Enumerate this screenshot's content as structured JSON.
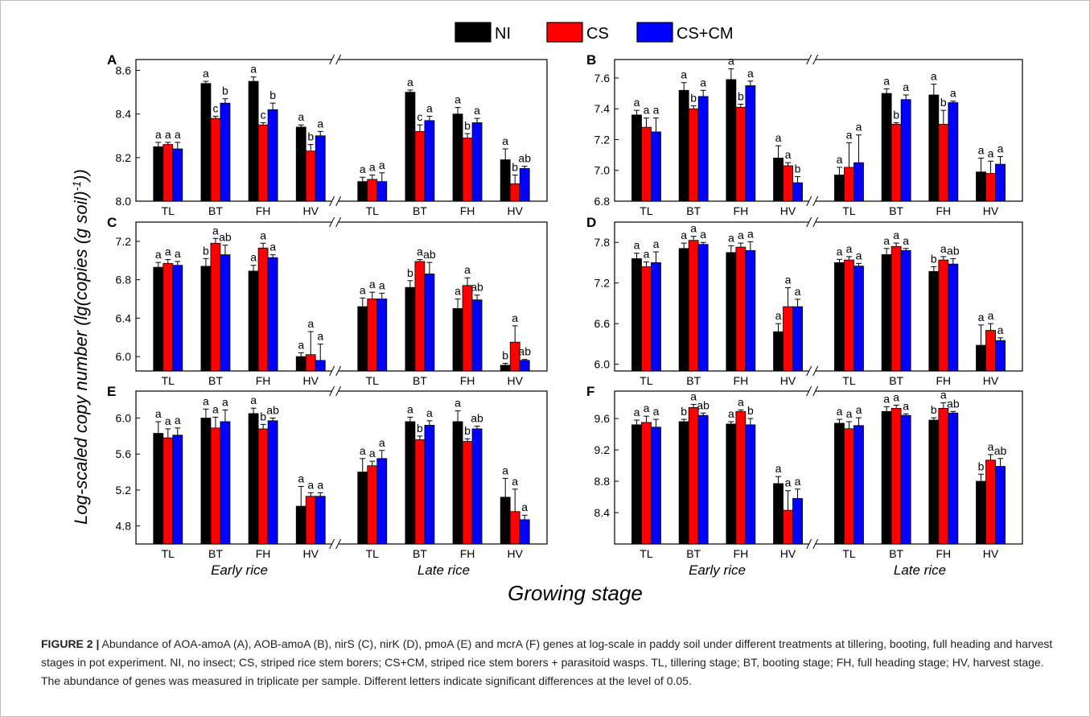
{
  "figure": {
    "legend": [
      {
        "label": "NI",
        "color": "#000000"
      },
      {
        "label": "CS",
        "color": "#ff0000"
      },
      {
        "label": "CS+CM",
        "color": "#0000ff"
      }
    ],
    "y_axis_label": "Log-scaled copy number (lg(copies (g soil)",
    "y_axis_label_sup": "-1",
    "y_axis_label_end": "))",
    "x_axis_label": "Growing stage",
    "group_labels": [
      "Early rice",
      "Late rice"
    ],
    "stages": [
      "TL",
      "BT",
      "FH",
      "HV"
    ]
  },
  "caption": {
    "label": "FIGURE 2 |",
    "text": "Abundance of AOA-amoA (A), AOB-amoA (B), nirS (C), nirK (D), pmoA (E) and mcrA (F) genes at log-scale in paddy soil under different treatments at tillering, booting, full heading and harvest stages in pot experiment. NI, no insect; CS, striped rice stem borers; CS+CM, striped rice stem borers + parasitoid wasps. TL, tillering stage; BT, booting stage; FH, full heading stage; HV, harvest stage. The abundance of genes was measured in triplicate per sample. Different letters indicate significant differences at the level of 0.05."
  },
  "chart_data": [
    {
      "panel": "A",
      "type": "bar",
      "categories": [
        "TL",
        "BT",
        "FH",
        "HV",
        "TL",
        "BT",
        "FH",
        "HV"
      ],
      "ylim": [
        8.0,
        8.65
      ],
      "yticks": [
        8.0,
        8.2,
        8.4,
        8.6
      ],
      "tick_decimals": 1,
      "series": [
        {
          "name": "NI",
          "values": [
            8.25,
            8.54,
            8.55,
            8.34,
            8.09,
            8.5,
            8.4,
            8.19
          ],
          "errors": [
            0.02,
            0.01,
            0.02,
            0.01,
            0.02,
            0.01,
            0.03,
            0.05
          ],
          "letters": [
            "a",
            "a",
            "a",
            "a",
            "a",
            "a",
            "a",
            "a"
          ]
        },
        {
          "name": "CS",
          "values": [
            8.26,
            8.38,
            8.35,
            8.23,
            8.1,
            8.32,
            8.29,
            8.08
          ],
          "errors": [
            0.01,
            0.01,
            0.01,
            0.03,
            0.02,
            0.03,
            0.02,
            0.04
          ],
          "letters": [
            "a",
            "c",
            "c",
            "b",
            "a",
            "c",
            "b",
            "b"
          ]
        },
        {
          "name": "CS+CM",
          "values": [
            8.24,
            8.45,
            8.42,
            8.3,
            8.09,
            8.37,
            8.36,
            8.15
          ],
          "errors": [
            0.03,
            0.02,
            0.03,
            0.02,
            0.04,
            0.02,
            0.02,
            0.01
          ],
          "letters": [
            "a",
            "b",
            "b",
            "a",
            "a",
            "a",
            "a",
            "ab"
          ]
        }
      ]
    },
    {
      "panel": "B",
      "type": "bar",
      "categories": [
        "TL",
        "BT",
        "FH",
        "HV",
        "TL",
        "BT",
        "FH",
        "HV"
      ],
      "ylim": [
        6.8,
        7.72
      ],
      "yticks": [
        6.8,
        7.0,
        7.2,
        7.4,
        7.6
      ],
      "tick_decimals": 1,
      "series": [
        {
          "name": "NI",
          "values": [
            7.36,
            7.52,
            7.59,
            7.08,
            6.97,
            7.5,
            7.49,
            6.99
          ],
          "errors": [
            0.03,
            0.05,
            0.07,
            0.08,
            0.05,
            0.03,
            0.07,
            0.09
          ],
          "letters": [
            "a",
            "a",
            "a",
            "a",
            "a",
            "a",
            "a",
            "a"
          ]
        },
        {
          "name": "CS",
          "values": [
            7.28,
            7.4,
            7.41,
            7.03,
            7.02,
            7.3,
            7.3,
            6.98
          ],
          "errors": [
            0.06,
            0.02,
            0.02,
            0.02,
            0.16,
            0.01,
            0.09,
            0.08
          ],
          "letters": [
            "a",
            "b",
            "b",
            "a",
            "a",
            "b",
            "b",
            "a"
          ]
        },
        {
          "name": "CS+CM",
          "values": [
            7.25,
            7.48,
            7.55,
            6.92,
            7.05,
            7.46,
            7.44,
            7.04
          ],
          "errors": [
            0.09,
            0.04,
            0.03,
            0.04,
            0.18,
            0.03,
            0.01,
            0.05
          ],
          "letters": [
            "a",
            "a",
            "a",
            "b",
            "a",
            "a",
            "a",
            "a"
          ]
        }
      ]
    },
    {
      "panel": "C",
      "type": "bar",
      "categories": [
        "TL",
        "BT",
        "FH",
        "HV",
        "TL",
        "BT",
        "FH",
        "HV"
      ],
      "ylim": [
        5.85,
        7.4
      ],
      "yticks": [
        6.0,
        6.4,
        6.8,
        7.2
      ],
      "tick_decimals": 1,
      "series": [
        {
          "name": "NI",
          "values": [
            6.93,
            6.94,
            6.89,
            6.0,
            6.52,
            6.72,
            6.5,
            5.91
          ],
          "errors": [
            0.05,
            0.08,
            0.06,
            0.04,
            0.09,
            0.07,
            0.1,
            0.02
          ],
          "letters": [
            "a",
            "b",
            "a",
            "a",
            "a",
            "b",
            "a",
            "b"
          ]
        },
        {
          "name": "CS",
          "values": [
            6.97,
            7.18,
            7.13,
            6.02,
            6.6,
            6.99,
            6.74,
            6.15
          ],
          "errors": [
            0.04,
            0.05,
            0.05,
            0.24,
            0.07,
            0.02,
            0.08,
            0.17
          ],
          "letters": [
            "a",
            "a",
            "a",
            "a",
            "a",
            "a",
            "a",
            "a"
          ]
        },
        {
          "name": "CS+CM",
          "values": [
            6.95,
            7.06,
            7.03,
            5.96,
            6.6,
            6.86,
            6.59,
            5.96
          ],
          "errors": [
            0.04,
            0.1,
            0.03,
            0.17,
            0.06,
            0.12,
            0.05,
            0.01
          ],
          "letters": [
            "a",
            "ab",
            "a",
            "a",
            "a",
            "ab",
            "ab",
            "ab"
          ]
        }
      ]
    },
    {
      "panel": "D",
      "type": "bar",
      "categories": [
        "TL",
        "BT",
        "FH",
        "HV",
        "TL",
        "BT",
        "FH",
        "HV"
      ],
      "ylim": [
        5.9,
        8.1
      ],
      "yticks": [
        6.0,
        6.6,
        7.2,
        7.8
      ],
      "tick_decimals": 1,
      "series": [
        {
          "name": "NI",
          "values": [
            7.56,
            7.71,
            7.65,
            6.48,
            7.5,
            7.62,
            7.37,
            6.28
          ],
          "errors": [
            0.08,
            0.08,
            0.1,
            0.12,
            0.05,
            0.09,
            0.07,
            0.3
          ],
          "letters": [
            "a",
            "a",
            "a",
            "a",
            "a",
            "a",
            "b",
            "a"
          ]
        },
        {
          "name": "CS",
          "values": [
            7.44,
            7.83,
            7.73,
            6.85,
            7.54,
            7.74,
            7.54,
            6.5
          ],
          "errors": [
            0.07,
            0.06,
            0.06,
            0.28,
            0.05,
            0.05,
            0.05,
            0.1
          ],
          "letters": [
            "a",
            "a",
            "a",
            "a",
            "a",
            "a",
            "a",
            "a"
          ]
        },
        {
          "name": "CS+CM",
          "values": [
            7.5,
            7.77,
            7.68,
            6.85,
            7.45,
            7.68,
            7.48,
            6.35
          ],
          "errors": [
            0.16,
            0.03,
            0.13,
            0.11,
            0.04,
            0.03,
            0.08,
            0.04
          ],
          "letters": [
            "a",
            "a",
            "a",
            "a",
            "a",
            "a",
            "ab",
            "a"
          ]
        }
      ]
    },
    {
      "panel": "E",
      "type": "bar",
      "categories": [
        "TL",
        "BT",
        "FH",
        "HV",
        "TL",
        "BT",
        "FH",
        "HV"
      ],
      "ylim": [
        4.6,
        6.3
      ],
      "yticks": [
        4.8,
        5.2,
        5.6,
        6.0
      ],
      "tick_decimals": 1,
      "series": [
        {
          "name": "NI",
          "values": [
            5.83,
            6.0,
            6.05,
            5.02,
            5.4,
            5.96,
            5.96,
            5.12
          ],
          "errors": [
            0.13,
            0.1,
            0.06,
            0.22,
            0.15,
            0.05,
            0.12,
            0.21
          ],
          "letters": [
            "a",
            "a",
            "a",
            "a",
            "a",
            "a",
            "a",
            "a"
          ]
        },
        {
          "name": "CS",
          "values": [
            5.78,
            5.89,
            5.88,
            5.13,
            5.47,
            5.76,
            5.74,
            4.96
          ],
          "errors": [
            0.1,
            0.12,
            0.05,
            0.04,
            0.05,
            0.04,
            0.03,
            0.25
          ],
          "letters": [
            "a",
            "a",
            "b",
            "a",
            "a",
            "b",
            "b",
            "a"
          ]
        },
        {
          "name": "CS+CM",
          "values": [
            5.81,
            5.96,
            5.97,
            5.13,
            5.55,
            5.92,
            5.88,
            4.87
          ],
          "errors": [
            0.08,
            0.13,
            0.03,
            0.04,
            0.09,
            0.05,
            0.03,
            0.05
          ],
          "letters": [
            "a",
            "a",
            "ab",
            "a",
            "a",
            "a",
            "ab",
            "a"
          ]
        }
      ]
    },
    {
      "panel": "F",
      "type": "bar",
      "categories": [
        "TL",
        "BT",
        "FH",
        "HV",
        "TL",
        "BT",
        "FH",
        "HV"
      ],
      "ylim": [
        8.0,
        9.95
      ],
      "yticks": [
        8.4,
        8.8,
        9.2,
        9.6
      ],
      "tick_decimals": 1,
      "series": [
        {
          "name": "NI",
          "values": [
            9.52,
            9.56,
            9.53,
            8.77,
            9.54,
            9.69,
            9.58,
            8.8
          ],
          "errors": [
            0.06,
            0.03,
            0.03,
            0.09,
            0.05,
            0.06,
            0.03,
            0.09
          ],
          "letters": [
            "a",
            "b",
            "a",
            "a",
            "a",
            "a",
            "b",
            "b"
          ]
        },
        {
          "name": "CS",
          "values": [
            9.55,
            9.74,
            9.69,
            8.43,
            9.47,
            9.73,
            9.73,
            9.07
          ],
          "errors": [
            0.08,
            0.04,
            0.02,
            0.25,
            0.09,
            0.04,
            0.07,
            0.07
          ],
          "letters": [
            "a",
            "a",
            "a",
            "a",
            "a",
            "a",
            "a",
            "a"
          ]
        },
        {
          "name": "CS+CM",
          "values": [
            9.49,
            9.64,
            9.52,
            8.58,
            9.51,
            9.64,
            9.67,
            8.99
          ],
          "errors": [
            0.1,
            0.03,
            0.08,
            0.12,
            0.1,
            0.02,
            0.02,
            0.1
          ],
          "letters": [
            "a",
            "ab",
            "b",
            "a",
            "a",
            "a",
            "ab",
            "ab"
          ]
        }
      ]
    }
  ]
}
